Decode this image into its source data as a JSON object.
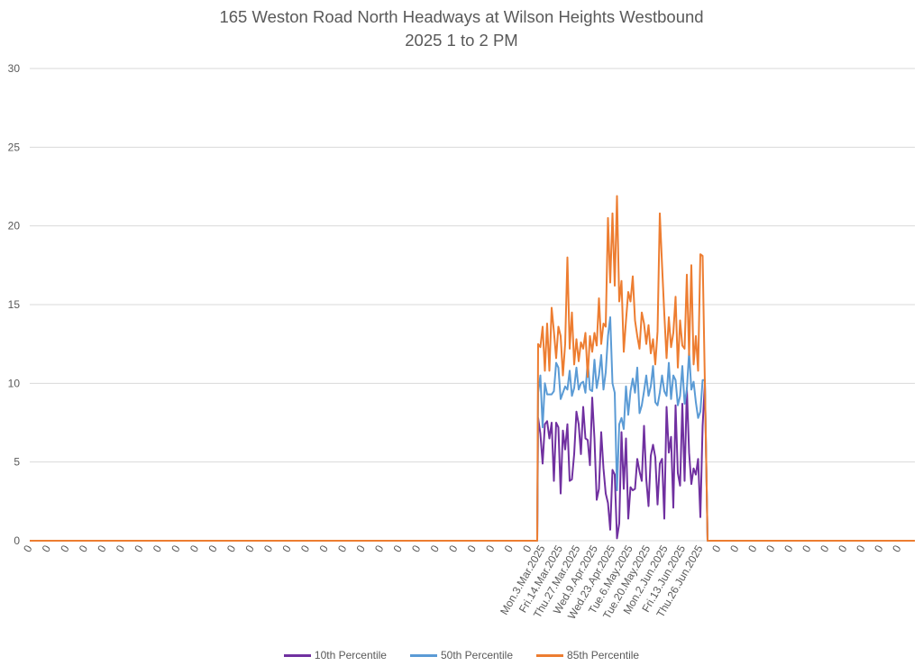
{
  "chart_data": {
    "type": "line",
    "title": "165 Weston Road North Headways at Wilson Heights Westbound",
    "subtitle": "2025 1 to 2 PM",
    "xlabel": "",
    "ylabel": "",
    "ylim": [
      0,
      30
    ],
    "yticks": [
      0,
      5,
      10,
      15,
      20,
      25,
      30
    ],
    "grid": true,
    "legend_position": "bottom",
    "x_start_count": 140,
    "x_end_count": 114,
    "x_zero_label": "0",
    "x_labels_leading_zeros": 28,
    "x_labels_trailing_zeros": 11,
    "date_labels": [
      "Mon.3.Mar.2025",
      "Fri.14.Mar.2025",
      "Thu.27.Mar.2025",
      "Wed.9.Apr.2025",
      "Wed.23.Apr.2025",
      "Tue.6.May.2025",
      "Tue.20.May.2025",
      "Mon.2.Jun.2025",
      "Fri.13.Jun.2025",
      "Thu.26.Jun.2025"
    ],
    "data_values": {
      "p10": [
        7.8,
        6.8,
        4.9,
        7.4,
        7.6,
        6.5,
        7.5,
        3.8,
        7.5,
        7.2,
        3,
        7,
        5.8,
        7.4,
        3.8,
        3.9,
        5.5,
        8.2,
        7.4,
        5.5,
        8.5,
        6.5,
        6.4,
        4.8,
        9.1,
        6.5,
        2.6,
        3.3,
        6.9,
        4.6,
        3,
        2.4,
        0.7,
        4.5,
        4.2,
        0.15,
        1.1,
        6.9,
        3.3,
        6.5,
        1.4,
        3.4,
        3.2,
        3.3,
        5.2,
        4.4,
        3.8,
        7.3,
        3.9,
        2.2,
        5.4,
        6.1,
        5.3,
        2.3,
        4.9,
        5.2,
        1.4,
        8.5,
        5.6,
        6.6,
        2.1,
        8.6,
        4.3,
        3.5,
        8.7,
        3.8,
        9.7,
        5.6,
        3.6,
        4.6,
        4.2,
        5.2,
        1.5,
        7.3,
        10
      ],
      "p50": [
        9.4,
        10.5,
        7.2,
        10,
        9.3,
        9.3,
        9.3,
        9.5,
        11.3,
        11,
        9,
        9.4,
        9.8,
        9.6,
        10.8,
        9.2,
        9.7,
        11,
        9.6,
        10,
        10.1,
        9.4,
        11.4,
        9.6,
        9.5,
        11.5,
        9.7,
        10.5,
        11.8,
        9.6,
        10.7,
        13,
        14.2,
        10,
        9.4,
        3.2,
        7.4,
        7.8,
        7.1,
        9.8,
        8,
        9.5,
        10.3,
        9.4,
        11,
        8.1,
        8.6,
        9.5,
        10.5,
        9.2,
        9.8,
        11.1,
        8.8,
        8.6,
        9.4,
        10.5,
        9.5,
        9.2,
        11.3,
        9,
        10.5,
        10.2,
        8.6,
        9.2,
        11.1,
        8.7,
        9.6,
        12,
        9.6,
        10.1,
        8.8,
        7.8,
        8.2,
        10.2,
        10.2
      ],
      "p85": [
        12.5,
        12.3,
        13.6,
        10.8,
        13.8,
        10.8,
        14.8,
        13.3,
        11.6,
        13.6,
        13,
        10.5,
        12.5,
        18,
        12.2,
        14.5,
        11.2,
        12.8,
        11.4,
        12.6,
        12.2,
        13.2,
        10.4,
        13,
        12,
        13.2,
        12.4,
        15.4,
        12.5,
        13.8,
        13.6,
        20.5,
        16.4,
        20.8,
        16.2,
        21.9,
        15.2,
        16.5,
        12,
        14,
        15.8,
        15.2,
        16.8,
        14,
        13,
        12.2,
        14.5,
        13.8,
        12.5,
        13.7,
        11.9,
        12.8,
        11.2,
        13.3,
        20.8,
        17.5,
        14.4,
        11.6,
        14.2,
        12.3,
        13.2,
        15.5,
        11,
        14,
        12.4,
        12.2,
        16.9,
        11.8,
        17.5,
        11.2,
        13,
        10.8,
        18.2,
        18.1,
        10
      ]
    },
    "series": [
      {
        "name": "10th Percentile",
        "color": "#7030a0",
        "values_ref": "p10"
      },
      {
        "name": "50th Percentile",
        "color": "#5b9bd5",
        "values_ref": "p50"
      },
      {
        "name": "85th Percentile",
        "color": "#ed7d31",
        "values_ref": "p85"
      }
    ]
  }
}
